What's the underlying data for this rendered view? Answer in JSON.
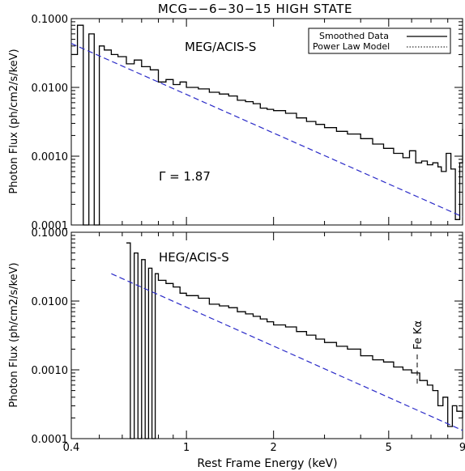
{
  "figure": {
    "title": "MCG−−6−30−15 HIGH STATE",
    "xlabel": "Rest Frame Energy (keV)"
  },
  "legend": {
    "entries": [
      {
        "label": "Smoothed Data",
        "style": "solid"
      },
      {
        "label": "Power Law Model",
        "style": "dotted"
      }
    ]
  },
  "colors": {
    "data": "#000000",
    "model": "#2b2bc8",
    "axes": "#000000"
  },
  "chart_data": [
    {
      "type": "line",
      "panel": "top",
      "label": "MEG/ACIS-S",
      "annotation": "Γ = 1.87",
      "ylabel": "Photon Flux (ph/cm2/s/keV)",
      "xscale": "log",
      "yscale": "log",
      "xlim": [
        0.4,
        9
      ],
      "ylim": [
        0.0001,
        0.1
      ],
      "xticks": [
        {
          "v": 0.4,
          "t": "0.4"
        },
        {
          "v": 1,
          "t": "1"
        },
        {
          "v": 2,
          "t": "2"
        },
        {
          "v": 5,
          "t": "5"
        },
        {
          "v": 9,
          "t": "9"
        }
      ],
      "yticks": [
        {
          "v": 0.0001,
          "t": "0.0001"
        },
        {
          "v": 0.001,
          "t": "0.0010"
        },
        {
          "v": 0.01,
          "t": "0.0100"
        },
        {
          "v": 0.1,
          "t": "0.1000"
        }
      ],
      "series": [
        {
          "name": "Smoothed Data",
          "style": "step",
          "x": [
            0.4,
            0.42,
            0.44,
            0.46,
            0.48,
            0.5,
            0.52,
            0.55,
            0.58,
            0.62,
            0.66,
            0.7,
            0.75,
            0.8,
            0.85,
            0.9,
            0.95,
            1.0,
            1.1,
            1.2,
            1.3,
            1.4,
            1.5,
            1.6,
            1.7,
            1.8,
            1.9,
            2.0,
            2.2,
            2.4,
            2.6,
            2.8,
            3.0,
            3.3,
            3.6,
            4.0,
            4.4,
            4.8,
            5.2,
            5.6,
            5.9,
            6.2,
            6.5,
            6.8,
            7.1,
            7.4,
            7.6,
            7.9,
            8.2,
            8.5,
            8.8,
            9.0
          ],
          "y": [
            0.03,
            0.08,
            0.0001,
            0.06,
            0.0001,
            0.04,
            0.035,
            0.03,
            0.028,
            0.022,
            0.025,
            0.02,
            0.018,
            0.012,
            0.013,
            0.011,
            0.012,
            0.01,
            0.0095,
            0.0085,
            0.008,
            0.0075,
            0.0065,
            0.0062,
            0.0058,
            0.005,
            0.0048,
            0.0046,
            0.0042,
            0.0036,
            0.0032,
            0.0029,
            0.0026,
            0.0023,
            0.0021,
            0.0018,
            0.0015,
            0.0013,
            0.0011,
            0.00095,
            0.0012,
            0.0008,
            0.00085,
            0.00075,
            0.0008,
            0.0007,
            0.0006,
            0.0011,
            0.00065,
            0.00012,
            0.0008,
            0.0025
          ]
        },
        {
          "name": "Power Law Model",
          "style": "dashed",
          "x": [
            0.4,
            9
          ],
          "y": [
            0.0435,
            0.000132
          ]
        }
      ]
    },
    {
      "type": "line",
      "panel": "bottom",
      "label": "HEG/ACIS-S",
      "annotation": "Fe Kα",
      "ylabel": "Photon Flux (ph/cm2/s/keV)",
      "xscale": "log",
      "yscale": "log",
      "xlim": [
        0.4,
        9
      ],
      "ylim": [
        0.0001,
        0.1
      ],
      "xticks": [
        {
          "v": 0.4,
          "t": "0.4"
        },
        {
          "v": 1,
          "t": "1"
        },
        {
          "v": 2,
          "t": "2"
        },
        {
          "v": 5,
          "t": "5"
        },
        {
          "v": 9,
          "t": "9"
        }
      ],
      "yticks": [
        {
          "v": 0.0001,
          "t": "0.0001"
        },
        {
          "v": 0.001,
          "t": "0.0010"
        },
        {
          "v": 0.01,
          "t": "0.0100"
        },
        {
          "v": 0.1,
          "t": "0.1000"
        }
      ],
      "series": [
        {
          "name": "Smoothed Data",
          "style": "step",
          "x": [
            0.62,
            0.64,
            0.66,
            0.68,
            0.7,
            0.72,
            0.74,
            0.76,
            0.78,
            0.8,
            0.85,
            0.9,
            0.95,
            1.0,
            1.1,
            1.2,
            1.3,
            1.4,
            1.5,
            1.6,
            1.7,
            1.8,
            1.9,
            2.0,
            2.2,
            2.4,
            2.6,
            2.8,
            3.0,
            3.3,
            3.6,
            4.0,
            4.4,
            4.8,
            5.2,
            5.6,
            6.0,
            6.4,
            6.8,
            7.1,
            7.4,
            7.7,
            8.0,
            8.3,
            8.6,
            9.0
          ],
          "y": [
            0.07,
            0.0001,
            0.05,
            0.0001,
            0.04,
            0.0001,
            0.03,
            0.0001,
            0.025,
            0.02,
            0.018,
            0.016,
            0.013,
            0.012,
            0.011,
            0.009,
            0.0085,
            0.008,
            0.007,
            0.0065,
            0.006,
            0.0055,
            0.005,
            0.0045,
            0.0042,
            0.0036,
            0.0032,
            0.0028,
            0.0025,
            0.0022,
            0.002,
            0.0016,
            0.0014,
            0.0013,
            0.0011,
            0.001,
            0.0009,
            0.0007,
            0.0006,
            0.0005,
            0.0003,
            0.0004,
            0.00015,
            0.0003,
            0.00025,
            0.0002
          ]
        },
        {
          "name": "Power Law Model",
          "style": "dashed",
          "x": [
            0.55,
            9
          ],
          "y": [
            0.025,
            0.000132
          ]
        }
      ]
    }
  ]
}
